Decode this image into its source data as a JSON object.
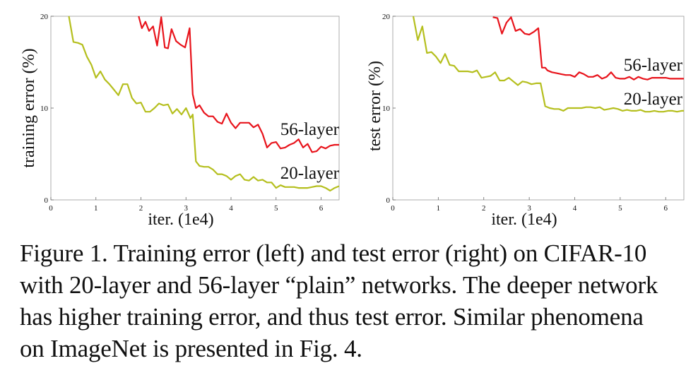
{
  "chart_data": [
    {
      "type": "line",
      "title": "",
      "xlabel": "iter. (1e4)",
      "ylabel": "training error (%)",
      "xlim": [
        0,
        6.4
      ],
      "ylim": [
        0,
        20
      ],
      "xticks": [
        "0",
        "1",
        "2",
        "3",
        "4",
        "5",
        "6"
      ],
      "yticks": [
        "0",
        "10",
        "20"
      ],
      "grid": false,
      "series": [
        {
          "name": "56-layer",
          "color": "#e8141c",
          "x": [
            1.95,
            2.02,
            2.1,
            2.18,
            2.27,
            2.36,
            2.45,
            2.53,
            2.6,
            2.68,
            2.78,
            2.88,
            2.98,
            3.08,
            3.15,
            3.22,
            3.3,
            3.4,
            3.5,
            3.6,
            3.7,
            3.8,
            3.9,
            4.0,
            4.1,
            4.2,
            4.3,
            4.4,
            4.5,
            4.6,
            4.7,
            4.8,
            4.9,
            5.0,
            5.1,
            5.2,
            5.3,
            5.4,
            5.5,
            5.6,
            5.7,
            5.8,
            5.9,
            6.0,
            6.1,
            6.2,
            6.3,
            6.4
          ],
          "y": [
            20.0,
            18.7,
            19.4,
            18.4,
            18.9,
            16.8,
            19.9,
            16.6,
            16.5,
            18.6,
            17.3,
            16.9,
            16.6,
            18.7,
            11.5,
            10.0,
            10.3,
            9.5,
            9.1,
            9.1,
            8.5,
            8.3,
            9.4,
            8.4,
            7.8,
            8.4,
            8.4,
            8.4,
            7.9,
            8.2,
            7.2,
            5.7,
            6.2,
            6.3,
            5.6,
            5.7,
            6.0,
            6.2,
            6.6,
            5.7,
            6.1,
            5.2,
            5.3,
            5.8,
            5.6,
            5.9,
            6.0,
            6.0
          ]
        },
        {
          "name": "20-layer",
          "color": "#b5bf1e",
          "x": [
            0.4,
            0.5,
            0.6,
            0.7,
            0.8,
            0.9,
            1.0,
            1.1,
            1.2,
            1.3,
            1.4,
            1.5,
            1.6,
            1.7,
            1.8,
            1.9,
            2.0,
            2.1,
            2.2,
            2.3,
            2.4,
            2.5,
            2.6,
            2.7,
            2.8,
            2.9,
            3.0,
            3.1,
            3.15,
            3.22,
            3.3,
            3.4,
            3.5,
            3.6,
            3.7,
            3.8,
            3.9,
            4.0,
            4.1,
            4.2,
            4.3,
            4.4,
            4.5,
            4.6,
            4.7,
            4.8,
            4.9,
            5.0,
            5.1,
            5.2,
            5.3,
            5.4,
            5.5,
            5.6,
            5.7,
            5.8,
            5.9,
            6.0,
            6.1,
            6.2,
            6.3,
            6.4
          ],
          "y": [
            20.0,
            17.2,
            17.1,
            16.9,
            15.6,
            14.7,
            13.3,
            14.0,
            13.1,
            12.6,
            12.0,
            11.4,
            12.6,
            12.6,
            11.1,
            10.5,
            10.6,
            9.6,
            9.6,
            10.0,
            10.5,
            10.3,
            10.4,
            9.4,
            9.9,
            9.3,
            10.0,
            8.9,
            9.3,
            4.2,
            3.7,
            3.6,
            3.6,
            3.3,
            2.8,
            2.8,
            2.6,
            2.2,
            2.6,
            2.8,
            2.2,
            2.1,
            2.5,
            2.1,
            2.2,
            1.9,
            1.9,
            1.3,
            1.6,
            1.4,
            1.4,
            1.4,
            1.3,
            1.3,
            1.3,
            1.4,
            1.5,
            1.5,
            1.3,
            1.0,
            1.3,
            1.5
          ]
        }
      ]
    },
    {
      "type": "line",
      "title": "",
      "xlabel": "iter. (1e4)",
      "ylabel": "test error (%)",
      "xlim": [
        0,
        6.4
      ],
      "ylim": [
        0,
        20
      ],
      "xticks": [
        "0",
        "1",
        "2",
        "3",
        "4",
        "5",
        "6"
      ],
      "yticks": [
        "0",
        "10",
        "20"
      ],
      "grid": false,
      "series": [
        {
          "name": "56-layer",
          "color": "#e8141c",
          "x": [
            2.2,
            2.3,
            2.4,
            2.5,
            2.6,
            2.7,
            2.8,
            2.9,
            3.0,
            3.1,
            3.2,
            3.28,
            3.35,
            3.4,
            3.5,
            3.6,
            3.7,
            3.8,
            3.9,
            4.0,
            4.1,
            4.2,
            4.3,
            4.4,
            4.5,
            4.6,
            4.7,
            4.8,
            4.9,
            5.0,
            5.1,
            5.2,
            5.3,
            5.4,
            5.5,
            5.6,
            5.7,
            5.8,
            5.9,
            6.0,
            6.1,
            6.2,
            6.3,
            6.4
          ],
          "y": [
            19.9,
            19.8,
            18.1,
            19.3,
            19.9,
            18.4,
            18.6,
            18.1,
            18.0,
            18.3,
            18.7,
            14.4,
            14.4,
            14.1,
            13.9,
            13.8,
            13.7,
            13.6,
            13.6,
            13.4,
            13.9,
            13.7,
            13.4,
            13.4,
            13.6,
            13.2,
            13.4,
            13.9,
            13.3,
            13.2,
            13.2,
            13.4,
            13.1,
            13.4,
            13.2,
            13.1,
            13.3,
            13.3,
            13.3,
            13.3,
            13.2,
            13.2,
            13.2,
            13.2
          ]
        },
        {
          "name": "20-layer",
          "color": "#b5bf1e",
          "x": [
            0.45,
            0.55,
            0.65,
            0.75,
            0.85,
            0.95,
            1.05,
            1.15,
            1.25,
            1.35,
            1.45,
            1.55,
            1.65,
            1.75,
            1.85,
            1.95,
            2.05,
            2.15,
            2.25,
            2.35,
            2.45,
            2.55,
            2.65,
            2.75,
            2.85,
            2.95,
            3.05,
            3.15,
            3.25,
            3.35,
            3.45,
            3.55,
            3.65,
            3.75,
            3.85,
            3.95,
            4.05,
            4.15,
            4.25,
            4.35,
            4.45,
            4.55,
            4.65,
            4.75,
            4.85,
            4.95,
            5.05,
            5.15,
            5.25,
            5.35,
            5.45,
            5.55,
            5.65,
            5.75,
            5.85,
            5.95,
            6.05,
            6.15,
            6.25,
            6.35,
            6.4
          ],
          "y": [
            20.0,
            17.4,
            18.9,
            16.0,
            16.1,
            15.6,
            14.9,
            15.9,
            14.7,
            14.6,
            14.0,
            14.0,
            14.0,
            13.9,
            14.1,
            13.3,
            13.4,
            13.5,
            13.9,
            13.0,
            13.0,
            13.3,
            12.9,
            12.5,
            12.9,
            12.8,
            12.6,
            12.7,
            12.7,
            10.2,
            10.0,
            9.9,
            9.9,
            9.7,
            10.0,
            10.0,
            10.0,
            10.0,
            10.1,
            10.1,
            10.0,
            10.1,
            9.8,
            9.9,
            10.0,
            9.9,
            9.7,
            9.8,
            9.7,
            9.7,
            9.8,
            9.6,
            9.6,
            9.7,
            9.6,
            9.6,
            9.7,
            9.7,
            9.6,
            9.7,
            9.7
          ]
        }
      ]
    }
  ],
  "caption": {
    "line1": "Figure 1. Training error (left) and test error (right) on CIFAR-10",
    "line2": "with 20-layer and 56-layer “plain” networks. The deeper network",
    "line3": "has higher training error, and thus test error.  Similar phenomena",
    "line4": "on ImageNet is presented in Fig. 4."
  }
}
